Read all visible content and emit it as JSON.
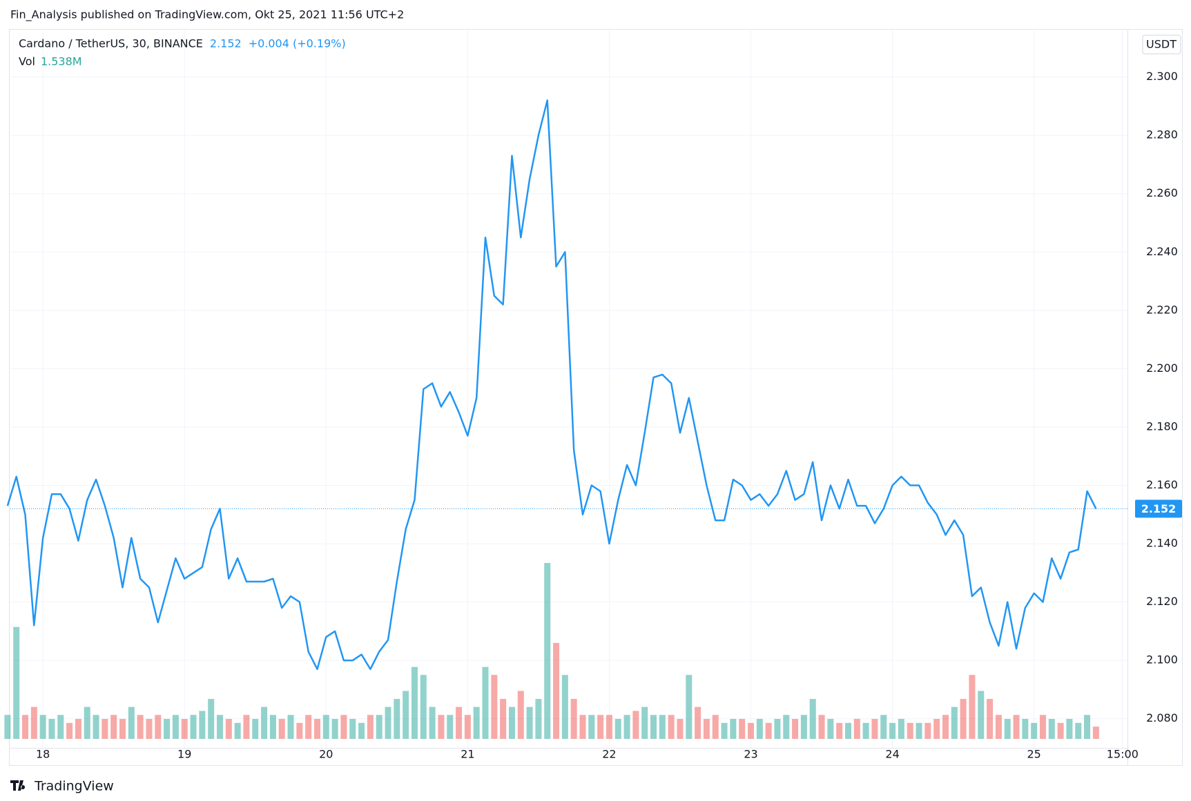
{
  "chart_data": {
    "type": "line",
    "title": "Fin_Analysis published on TradingView.com, Okt 25, 2021 11:56 UTC+2",
    "currency": "USDT",
    "change_label": "+0.004 (+0.19%)",
    "logo": "TradingView",
    "x": [
      17.75,
      17.8125,
      17.875,
      17.9375,
      18,
      18.0625,
      18.125,
      18.1875,
      18.25,
      18.3125,
      18.375,
      18.4375,
      18.5,
      18.5625,
      18.625,
      18.6875,
      18.75,
      18.8125,
      18.875,
      18.9375,
      19,
      19.0625,
      19.125,
      19.1875,
      19.25,
      19.3125,
      19.375,
      19.4375,
      19.5,
      19.5625,
      19.625,
      19.6875,
      19.75,
      19.8125,
      19.875,
      19.9375,
      20,
      20.0625,
      20.125,
      20.1875,
      20.25,
      20.3125,
      20.375,
      20.4375,
      20.5,
      20.5625,
      20.625,
      20.6875,
      20.75,
      20.8125,
      20.875,
      20.9375,
      21,
      21.0625,
      21.125,
      21.1875,
      21.25,
      21.3125,
      21.375,
      21.4375,
      21.5,
      21.5625,
      21.625,
      21.6875,
      21.75,
      21.8125,
      21.875,
      21.9375,
      22,
      22.0625,
      22.125,
      22.1875,
      22.25,
      22.3125,
      22.375,
      22.4375,
      22.5,
      22.5625,
      22.625,
      22.6875,
      22.75,
      22.8125,
      22.875,
      22.9375,
      23,
      23.0625,
      23.125,
      23.1875,
      23.25,
      23.3125,
      23.375,
      23.4375,
      23.5,
      23.5625,
      23.625,
      23.6875,
      23.75,
      23.8125,
      23.875,
      23.9375,
      24,
      24.0625,
      24.125,
      24.1875,
      24.25,
      24.3125,
      24.375,
      24.4375,
      24.5,
      24.5625,
      24.625,
      24.6875,
      24.75,
      24.8125,
      24.875,
      24.9375,
      25,
      25.0625,
      25.125,
      25.1875,
      25.25,
      25.3125,
      25.375,
      25.4375
    ],
    "series": [
      {
        "name": "Cardano / TetherUS, 30, BINANCE",
        "color": "#2196f3",
        "values": [
          2.153,
          2.163,
          2.15,
          2.112,
          2.142,
          2.157,
          2.157,
          2.152,
          2.141,
          2.155,
          2.162,
          2.153,
          2.142,
          2.125,
          2.142,
          2.128,
          2.125,
          2.113,
          2.124,
          2.135,
          2.128,
          2.13,
          2.132,
          2.145,
          2.152,
          2.128,
          2.135,
          2.127,
          2.127,
          2.127,
          2.128,
          2.118,
          2.122,
          2.12,
          2.103,
          2.097,
          2.108,
          2.11,
          2.1,
          2.1,
          2.102,
          2.097,
          2.103,
          2.107,
          2.127,
          2.145,
          2.155,
          2.193,
          2.195,
          2.187,
          2.192,
          2.185,
          2.177,
          2.19,
          2.245,
          2.225,
          2.222,
          2.273,
          2.245,
          2.265,
          2.28,
          2.292,
          2.235,
          2.24,
          2.172,
          2.15,
          2.16,
          2.158,
          2.14,
          2.155,
          2.167,
          2.16,
          2.178,
          2.197,
          2.198,
          2.195,
          2.178,
          2.19,
          2.175,
          2.16,
          2.148,
          2.148,
          2.162,
          2.16,
          2.155,
          2.157,
          2.153,
          2.157,
          2.165,
          2.155,
          2.157,
          2.168,
          2.148,
          2.16,
          2.152,
          2.162,
          2.153,
          2.153,
          2.147,
          2.152,
          2.16,
          2.163,
          2.16,
          2.16,
          2.154,
          2.15,
          2.143,
          2.148,
          2.143,
          2.122,
          2.125,
          2.113,
          2.105,
          2.12,
          2.104,
          2.118,
          2.123,
          2.12,
          2.135,
          2.128,
          2.137,
          2.138,
          2.158,
          2.152
        ]
      }
    ],
    "volume": {
      "name": "Vol",
      "last_label": "1.538M",
      "up_color": "#26a69a",
      "down_color": "#ef5350",
      "label_color": "#26a69a",
      "values": [
        3,
        14,
        3,
        4,
        3,
        2.5,
        3,
        2,
        2.5,
        4,
        3,
        2.5,
        3,
        2.5,
        4,
        3,
        2.5,
        3,
        2.5,
        3,
        2.5,
        3,
        3.5,
        5,
        3,
        2.5,
        2,
        3,
        2.5,
        4,
        3,
        2.5,
        3,
        2,
        3,
        2.5,
        3,
        2.5,
        3,
        2.5,
        2,
        3,
        3,
        4,
        5,
        6,
        9,
        8,
        4,
        3,
        3,
        4,
        3,
        4,
        9,
        8,
        5,
        4,
        6,
        4,
        5,
        22,
        12,
        8,
        5,
        3,
        3,
        3,
        3,
        2.5,
        3,
        3.5,
        4,
        3,
        3,
        3,
        2.5,
        8,
        4,
        2.5,
        3,
        2,
        2.5,
        2.5,
        2,
        2.5,
        2,
        2.5,
        3,
        2.5,
        3,
        5,
        3,
        2.5,
        2,
        2,
        2.5,
        2,
        2.5,
        3,
        2,
        2.5,
        2,
        2,
        2,
        2.5,
        3,
        4,
        5,
        8,
        6,
        5,
        3,
        2.5,
        3,
        2.5,
        2,
        3,
        2.5,
        2,
        2.5,
        2,
        3,
        1.538
      ]
    },
    "xlim": [
      17.77,
      25.66
    ],
    "xticks": [
      18,
      19,
      20,
      21,
      22,
      23,
      24,
      25,
      {
        "value": 25.625,
        "label": "15:00"
      }
    ],
    "ylim": [
      2.07,
      2.316
    ],
    "yticks": [
      {
        "value": 2.08,
        "label": "2.080"
      },
      {
        "value": 2.1,
        "label": "2.100"
      },
      {
        "value": 2.12,
        "label": "2.120"
      },
      {
        "value": 2.14,
        "label": "2.140"
      },
      {
        "value": 2.16,
        "label": "2.160"
      },
      {
        "value": 2.18,
        "label": "2.180"
      },
      {
        "value": 2.2,
        "label": "2.200"
      },
      {
        "value": 2.22,
        "label": "2.220"
      },
      {
        "value": 2.24,
        "label": "2.240"
      },
      {
        "value": 2.26,
        "label": "2.260"
      },
      {
        "value": 2.28,
        "label": "2.280"
      },
      {
        "value": 2.3,
        "label": "2.300"
      }
    ],
    "grid": true
  }
}
